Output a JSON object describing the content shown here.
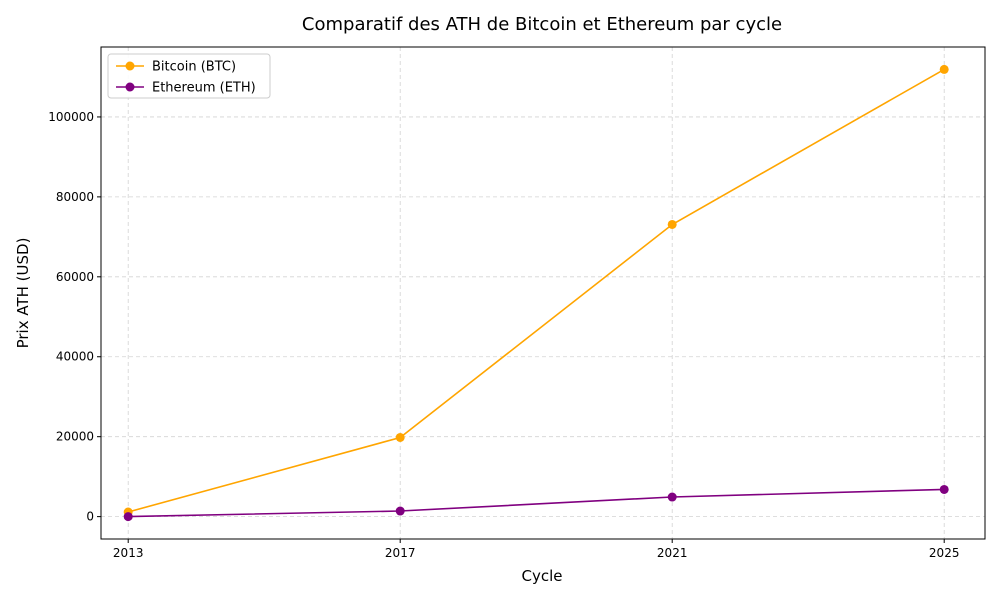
{
  "chart_data": {
    "type": "line",
    "title": "Comparatif des ATH de Bitcoin et Ethereum par cycle",
    "xlabel": "Cycle",
    "ylabel": "Prix ATH (USD)",
    "x": [
      2013,
      2017,
      2021,
      2025
    ],
    "x_tick_labels": [
      "2013",
      "2017",
      "2021",
      "2025"
    ],
    "y_ticks": [
      0,
      20000,
      40000,
      60000,
      80000,
      100000
    ],
    "y_tick_labels": [
      "0",
      "20000",
      "40000",
      "60000",
      "80000",
      "100000"
    ],
    "xlim": [
      2012.6,
      2025.6
    ],
    "ylim": [
      -5600,
      117500
    ],
    "grid": true,
    "legend_position": "top-left",
    "series": [
      {
        "name": "Bitcoin (BTC)",
        "color": "#FFA500",
        "values": [
          1150,
          19800,
          73100,
          111900
        ]
      },
      {
        "name": "Ethereum (ETH)",
        "color": "#800080",
        "values": [
          0,
          1400,
          4900,
          6800
        ]
      }
    ]
  }
}
